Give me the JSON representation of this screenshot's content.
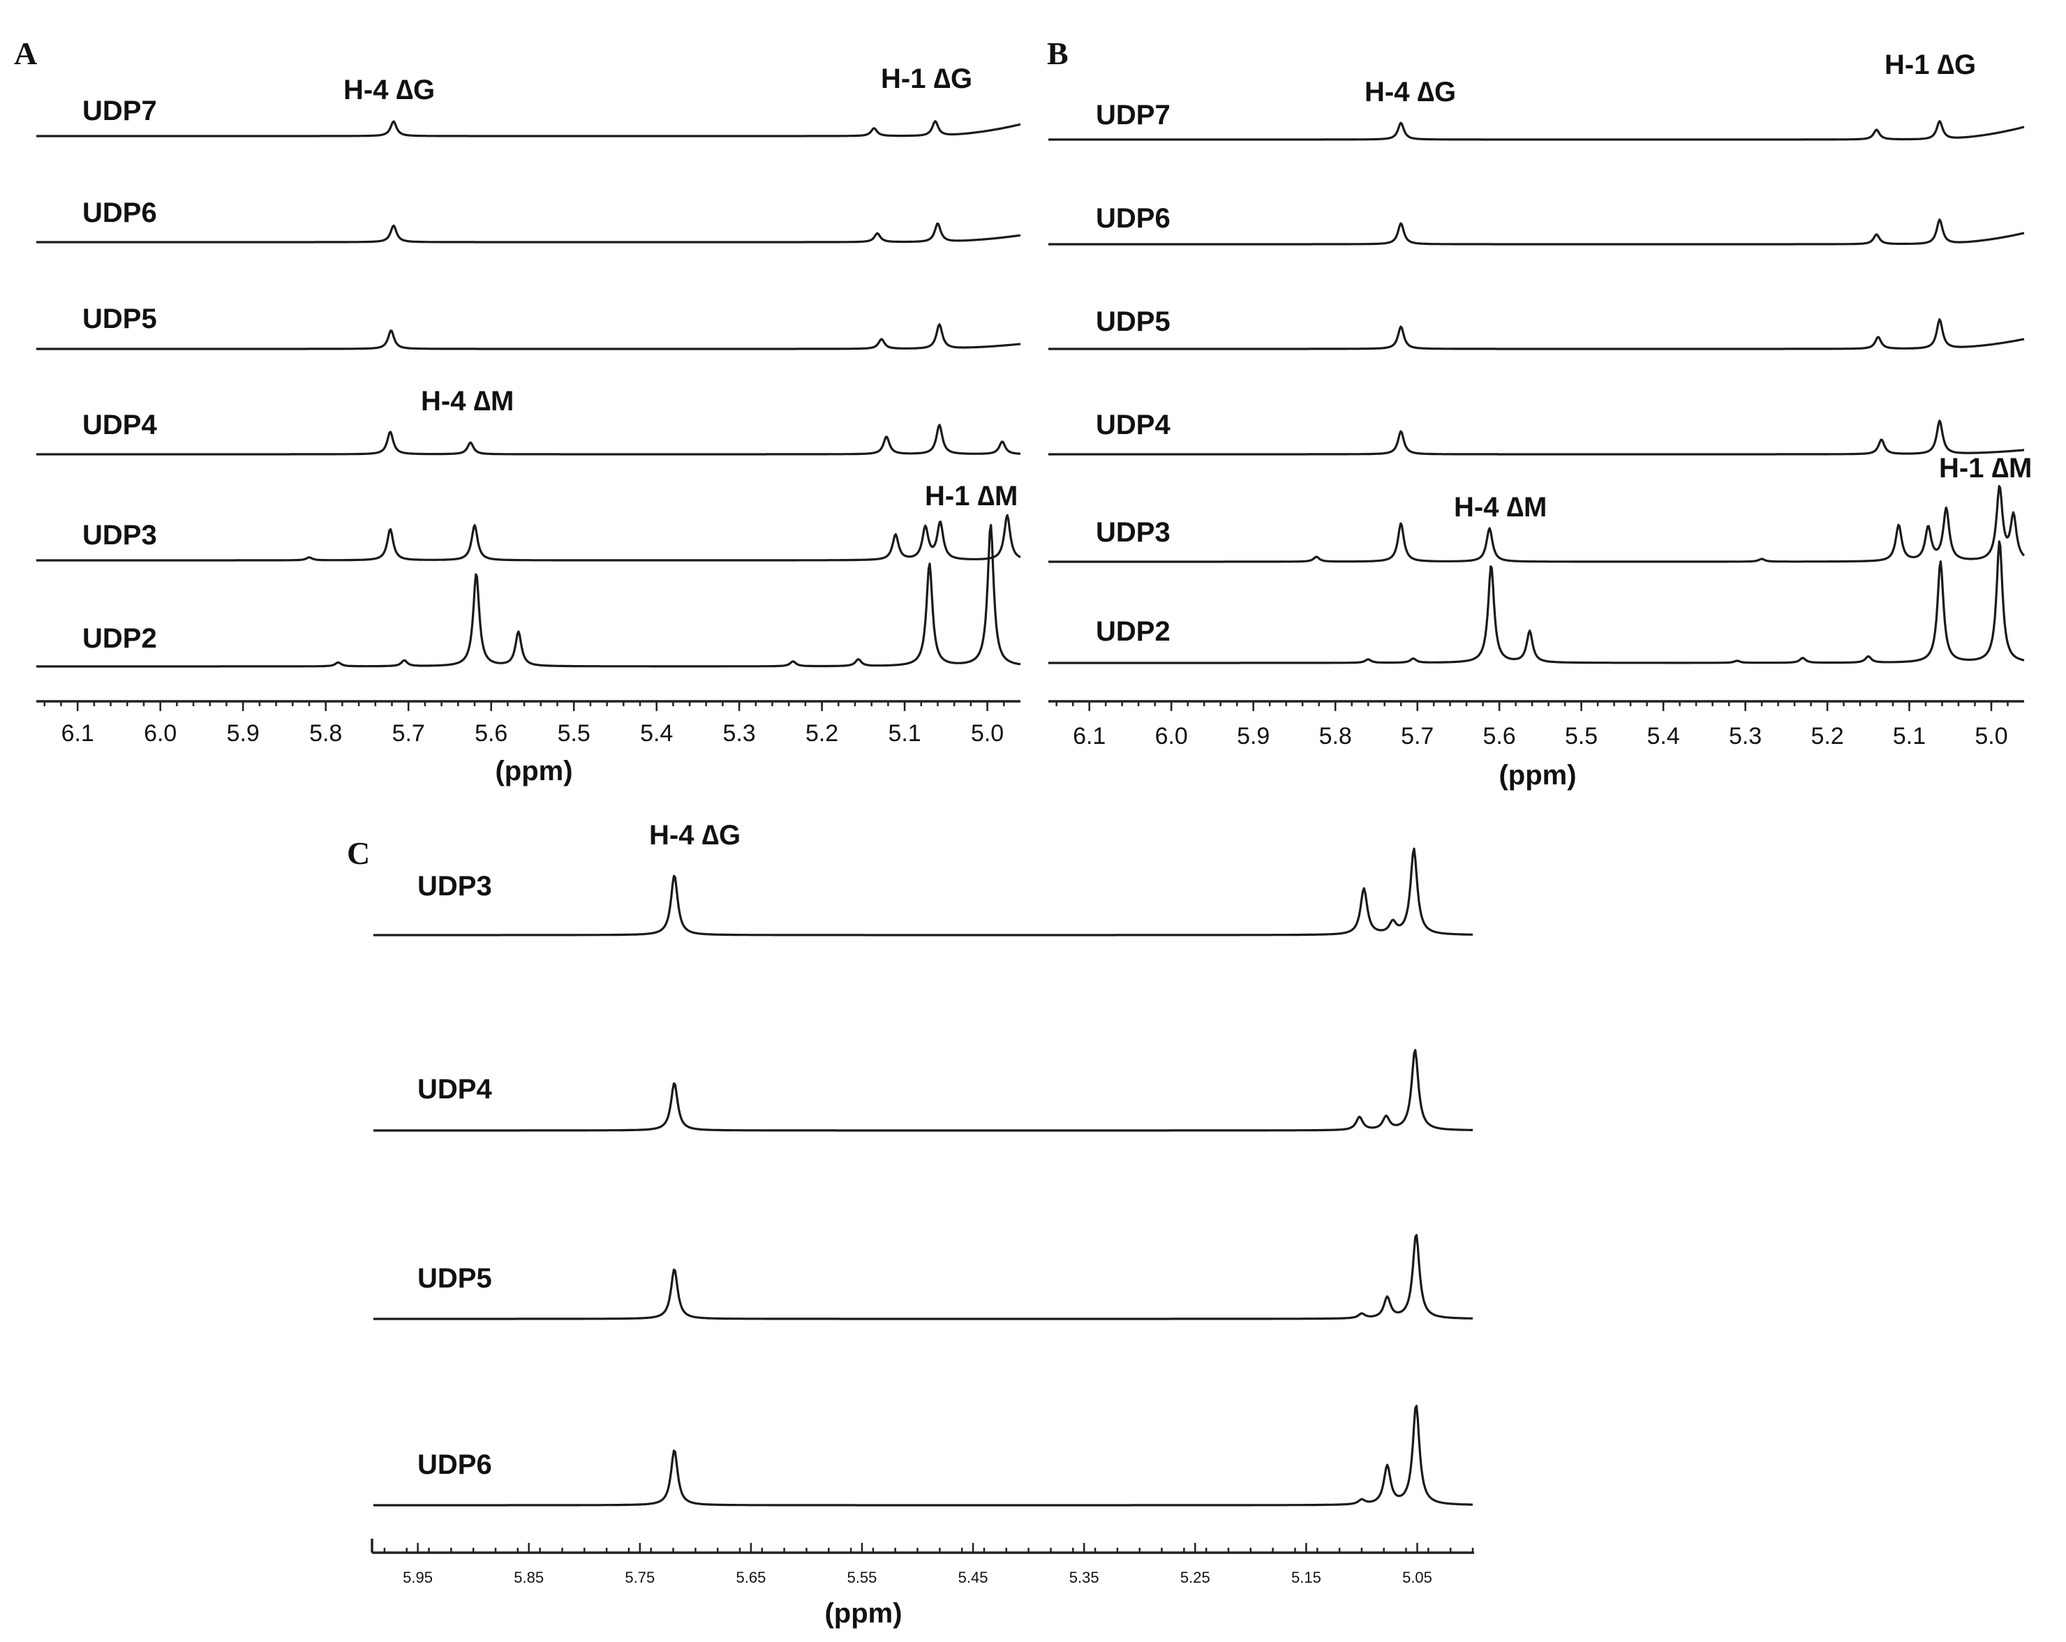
{
  "chart_data": [
    {
      "panel": "A",
      "type": "line",
      "xlabel": "(ppm)",
      "x_reversed": true,
      "xlim": [
        6.15,
        4.96
      ],
      "xticks": [
        "6.1",
        "6.0",
        "5.9",
        "5.8",
        "5.7",
        "5.6",
        "5.5",
        "5.4",
        "5.3",
        "5.2",
        "5.1",
        "5.0"
      ],
      "series": [
        {
          "name": "UDP7",
          "peaks": [
            {
              "ppm": 5.718,
              "height": 0.15
            },
            {
              "ppm": 5.137,
              "height": 0.08
            },
            {
              "ppm": 5.063,
              "height": 0.15
            }
          ],
          "baseline_rise": 0.12
        },
        {
          "name": "UDP6",
          "peaks": [
            {
              "ppm": 5.718,
              "height": 0.17
            },
            {
              "ppm": 5.133,
              "height": 0.09
            },
            {
              "ppm": 5.06,
              "height": 0.19
            }
          ],
          "baseline_rise": 0.07
        },
        {
          "name": "UDP5",
          "peaks": [
            {
              "ppm": 5.721,
              "height": 0.19
            },
            {
              "ppm": 5.128,
              "height": 0.1
            },
            {
              "ppm": 5.058,
              "height": 0.25
            }
          ],
          "baseline_rise": 0.05
        },
        {
          "name": "UDP4",
          "peaks": [
            {
              "ppm": 5.722,
              "height": 0.23
            },
            {
              "ppm": 5.625,
              "height": 0.12
            },
            {
              "ppm": 5.122,
              "height": 0.18
            },
            {
              "ppm": 5.058,
              "height": 0.3
            },
            {
              "ppm": 4.982,
              "height": 0.13
            }
          ],
          "baseline_rise": 0.0
        },
        {
          "name": "UDP3",
          "peaks": [
            {
              "ppm": 5.82,
              "height": 0.03
            },
            {
              "ppm": 5.722,
              "height": 0.32
            },
            {
              "ppm": 5.62,
              "height": 0.36
            },
            {
              "ppm": 5.111,
              "height": 0.26
            },
            {
              "ppm": 5.075,
              "height": 0.33
            },
            {
              "ppm": 5.057,
              "height": 0.38
            },
            {
              "ppm": 4.976,
              "height": 0.46
            }
          ],
          "baseline_rise": 0.0
        },
        {
          "name": "UDP2",
          "peaks": [
            {
              "ppm": 5.785,
              "height": 0.04
            },
            {
              "ppm": 5.705,
              "height": 0.06
            },
            {
              "ppm": 5.618,
              "height": 0.95
            },
            {
              "ppm": 5.567,
              "height": 0.35
            },
            {
              "ppm": 5.235,
              "height": 0.05
            },
            {
              "ppm": 5.156,
              "height": 0.07
            },
            {
              "ppm": 5.07,
              "height": 1.05
            },
            {
              "ppm": 4.996,
              "height": 1.45
            }
          ],
          "baseline_rise": 0.0
        }
      ],
      "annotations": [
        "H-4 ∆G",
        "H-1 ∆G",
        "H-4 ∆M",
        "H-1 ∆M"
      ]
    },
    {
      "panel": "B",
      "type": "line",
      "xlabel": "(ppm)",
      "x_reversed": true,
      "xlim": [
        6.15,
        4.96
      ],
      "xticks": [
        "6.1",
        "6.0",
        "5.9",
        "5.8",
        "5.7",
        "5.6",
        "5.5",
        "5.4",
        "5.3",
        "5.2",
        "5.1",
        "5.0"
      ],
      "series": [
        {
          "name": "UDP7",
          "peaks": [
            {
              "ppm": 5.72,
              "height": 0.24
            },
            {
              "ppm": 5.14,
              "height": 0.14
            },
            {
              "ppm": 5.063,
              "height": 0.26
            }
          ],
          "baseline_rise": 0.18
        },
        {
          "name": "UDP6",
          "peaks": [
            {
              "ppm": 5.72,
              "height": 0.3
            },
            {
              "ppm": 5.14,
              "height": 0.14
            },
            {
              "ppm": 5.063,
              "height": 0.35
            }
          ],
          "baseline_rise": 0.16
        },
        {
          "name": "UDP5",
          "peaks": [
            {
              "ppm": 5.72,
              "height": 0.32
            },
            {
              "ppm": 5.138,
              "height": 0.17
            },
            {
              "ppm": 5.063,
              "height": 0.42
            }
          ],
          "baseline_rise": 0.14
        },
        {
          "name": "UDP4",
          "peaks": [
            {
              "ppm": 5.72,
              "height": 0.33
            },
            {
              "ppm": 5.134,
              "height": 0.21
            },
            {
              "ppm": 5.063,
              "height": 0.48
            }
          ],
          "baseline_rise": 0.06
        },
        {
          "name": "UDP3",
          "peaks": [
            {
              "ppm": 5.823,
              "height": 0.07
            },
            {
              "ppm": 5.72,
              "height": 0.55
            },
            {
              "ppm": 5.612,
              "height": 0.48
            },
            {
              "ppm": 5.28,
              "height": 0.04
            },
            {
              "ppm": 5.113,
              "height": 0.52
            },
            {
              "ppm": 5.077,
              "height": 0.48
            },
            {
              "ppm": 5.055,
              "height": 0.75
            },
            {
              "ppm": 4.99,
              "height": 1.05
            },
            {
              "ppm": 4.973,
              "height": 0.64
            }
          ],
          "baseline_rise": 0.0
        },
        {
          "name": "UDP2",
          "peaks": [
            {
              "ppm": 5.76,
              "height": 0.05
            },
            {
              "ppm": 5.705,
              "height": 0.06
            },
            {
              "ppm": 5.61,
              "height": 1.4
            },
            {
              "ppm": 5.563,
              "height": 0.45
            },
            {
              "ppm": 5.31,
              "height": 0.03
            },
            {
              "ppm": 5.23,
              "height": 0.07
            },
            {
              "ppm": 5.15,
              "height": 0.09
            },
            {
              "ppm": 5.062,
              "height": 1.45
            },
            {
              "ppm": 4.99,
              "height": 1.75
            }
          ],
          "baseline_rise": 0.0
        }
      ],
      "annotations": [
        "H-4 ∆G",
        "H-1 ∆G",
        "H-4 ∆M",
        "H-1 ∆M"
      ]
    },
    {
      "panel": "C",
      "type": "line",
      "xlabel": "(ppm)",
      "x_reversed": true,
      "xlim": [
        5.99,
        5.0
      ],
      "xticks": [
        "5.95",
        "5.85",
        "5.75",
        "5.65",
        "5.55",
        "5.45",
        "5.35",
        "5.25",
        "5.15",
        "5.05"
      ],
      "series": [
        {
          "name": "UDP3",
          "peaks": [
            {
              "ppm": 5.719,
              "height": 0.78
            },
            {
              "ppm": 5.098,
              "height": 0.6
            },
            {
              "ppm": 5.072,
              "height": 0.15
            },
            {
              "ppm": 5.053,
              "height": 1.12
            }
          ],
          "baseline_rise": 0.0
        },
        {
          "name": "UDP4",
          "peaks": [
            {
              "ppm": 5.719,
              "height": 0.62
            },
            {
              "ppm": 5.102,
              "height": 0.17
            },
            {
              "ppm": 5.078,
              "height": 0.17
            },
            {
              "ppm": 5.052,
              "height": 1.05
            }
          ],
          "baseline_rise": 0.0
        },
        {
          "name": "UDP5",
          "peaks": [
            {
              "ppm": 5.719,
              "height": 0.65
            },
            {
              "ppm": 5.1,
              "height": 0.06
            },
            {
              "ppm": 5.077,
              "height": 0.27
            },
            {
              "ppm": 5.051,
              "height": 1.1
            }
          ],
          "baseline_rise": 0.0
        },
        {
          "name": "UDP6",
          "peaks": [
            {
              "ppm": 5.719,
              "height": 0.72
            },
            {
              "ppm": 5.1,
              "height": 0.06
            },
            {
              "ppm": 5.077,
              "height": 0.5
            },
            {
              "ppm": 5.051,
              "height": 1.3
            }
          ],
          "baseline_rise": 0.0
        }
      ],
      "annotations": [
        "H-4 ∆G"
      ]
    }
  ]
}
